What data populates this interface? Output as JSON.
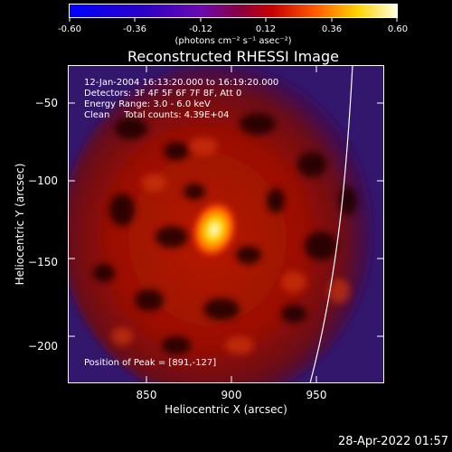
{
  "colorbar": {
    "ticks": [
      "-0.60",
      "-0.36",
      "-0.12",
      "0.12",
      "0.36",
      "0.60"
    ],
    "units": "(photons cm⁻² s⁻¹ asec⁻²)"
  },
  "title": "Reconstructed RHESSI Image",
  "info": {
    "time": "12-Jan-2004 16:13:20.000 to 16:19:20.000",
    "detectors": "Detectors: 3F 4F 5F 6F 7F 8F, Att 0",
    "energy": "Energy Range: 3.0 - 6.0 keV",
    "clean": "Clean     Total counts: 4.39E+04",
    "peak": "Position of Peak = [891,-127]"
  },
  "axes": {
    "xlabel": "Heliocentric X (arcsec)",
    "ylabel": "Heliocentric Y (arcsec)",
    "xticks": [
      "850",
      "900",
      "950"
    ],
    "yticks": [
      "−50",
      "−100",
      "−150",
      "−200"
    ]
  },
  "datestamp": "28-Apr-2022 01:57",
  "colors": {
    "background": "#000000",
    "frame": "#ffffff"
  },
  "icons": [
    "colorbar",
    "solar-limb-curve"
  ]
}
